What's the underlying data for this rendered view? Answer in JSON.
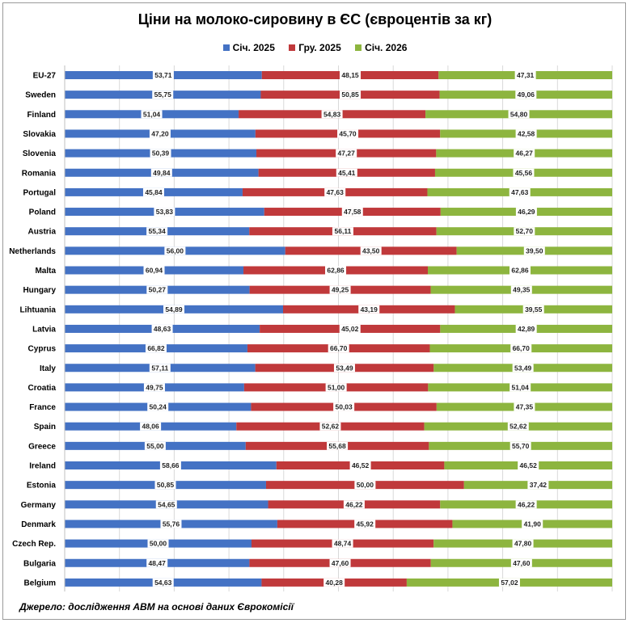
{
  "chart_data": {
    "type": "bar",
    "orientation": "horizontal",
    "stacked": true,
    "stack_mode": "percent",
    "title": "Ціни на молоко-сировину в ЄС (євроцентів за кг)",
    "legend_position": "top",
    "grid": true,
    "xlabel": "",
    "ylabel": "",
    "categories": [
      "EU-27",
      "Sweden",
      "Finland",
      "Slovakia",
      "Slovenia",
      "Romania",
      "Portugal",
      "Poland",
      "Austria",
      "Netherlands",
      "Malta",
      "Hungary",
      "Lihtuania",
      "Latvia",
      "Cyprus",
      "Italy",
      "Croatia",
      "France",
      "Spain",
      "Greece",
      "Ireland",
      "Estonia",
      "Germany",
      "Denmark",
      "Czech Rep.",
      "Bulgaria",
      "Belgium"
    ],
    "series": [
      {
        "name": "Січ. 2025",
        "color": "#4472C4",
        "values": [
          "53,71",
          "55,75",
          "51,04",
          "47,20",
          "50,39",
          "49,84",
          "45,84",
          "53,83",
          "55,34",
          "56,00",
          "60,94",
          "50,27",
          "54,89",
          "48,63",
          "66,82",
          "57,11",
          "49,75",
          "50,24",
          "48,06",
          "55,00",
          "58,66",
          "50,85",
          "54,65",
          "55,76",
          "50,00",
          "48,47",
          "54,63"
        ]
      },
      {
        "name": "Гру. 2025",
        "color": "#C0393B",
        "values": [
          "48,15",
          "50,85",
          "54,83",
          "45,70",
          "47,27",
          "45,41",
          "47,63",
          "47,58",
          "56,11",
          "43,50",
          "62,86",
          "49,25",
          "43,19",
          "45,02",
          "66,70",
          "53,49",
          "51,00",
          "50,03",
          "52,62",
          "55,68",
          "46,52",
          "50,00",
          "46,22",
          "45,92",
          "48,74",
          "47,60",
          "40,28"
        ]
      },
      {
        "name": "Січ. 2026",
        "color": "#8DB53F",
        "values": [
          "47,31",
          "49,06",
          "54,80",
          "42,58",
          "46,27",
          "45,56",
          "47,63",
          "46,29",
          "52,70",
          "39,50",
          "62,86",
          "49,35",
          "39,55",
          "42,89",
          "66,70",
          "53,49",
          "51,04",
          "47,35",
          "52,62",
          "55,70",
          "46,52",
          "37,42",
          "46,22",
          "41,90",
          "47,80",
          "47,60",
          "57,02"
        ]
      }
    ]
  },
  "footer": {
    "source": "Джерело: дослідження АВМ на основі даних Єврокомісії"
  }
}
